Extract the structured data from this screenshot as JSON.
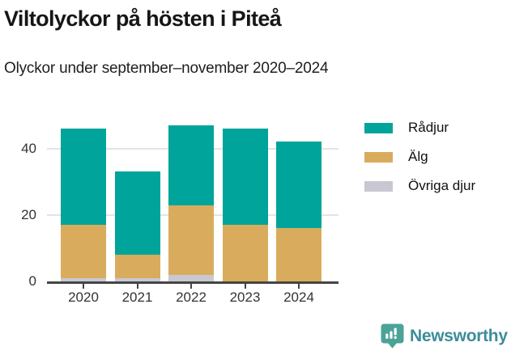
{
  "header": {
    "title": "Viltolyckor på hösten i Piteå",
    "subtitle": "Olyckor under september–november 2020–2024"
  },
  "chart_data": {
    "type": "bar",
    "stacked": true,
    "title": "Viltolyckor på hösten i Piteå",
    "subtitle": "Olyckor under september–november 2020–2024",
    "categories": [
      "2020",
      "2021",
      "2022",
      "2023",
      "2024"
    ],
    "series": [
      {
        "name": "Rådjur",
        "color": "#00A49A",
        "values": [
          29,
          25,
          24,
          29,
          26
        ]
      },
      {
        "name": "Älg",
        "color": "#D9AC5D",
        "values": [
          16,
          7,
          21,
          17,
          16
        ]
      },
      {
        "name": "Övriga djur",
        "color": "#C9C7D1",
        "values": [
          1,
          1,
          2,
          0,
          0
        ]
      }
    ],
    "stack_order_bottom_to_top": [
      "Övriga djur",
      "Älg",
      "Rådjur"
    ],
    "totals": [
      46,
      33,
      47,
      46,
      42
    ],
    "xlabel": "",
    "ylabel": "",
    "yticks": [
      0,
      20,
      40
    ],
    "ylim": [
      0,
      49.4
    ],
    "grid": true,
    "legend_position": "top-right",
    "style_colors": {
      "gridline": "#E4E4E4",
      "axis": "#454545",
      "tick_label": "#333333"
    }
  },
  "legend": {
    "items": [
      {
        "label": "Rådjur",
        "color": "#00A49A"
      },
      {
        "label": "Älg",
        "color": "#D9AC5D"
      },
      {
        "label": "Övriga djur",
        "color": "#C9C7D1"
      }
    ]
  },
  "footer": {
    "brand": "Newsworthy",
    "brand_text_color": "#3D8D99",
    "brand_icon_color": "#4BA398"
  }
}
